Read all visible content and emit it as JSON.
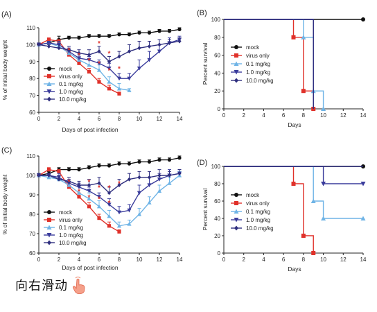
{
  "footer": {
    "text": "向右滑动",
    "icon": "pointing-hand-icon"
  },
  "colors": {
    "mock": "#111111",
    "virus": "#e0312a",
    "d01": "#6fb4e6",
    "d1": "#3a3c9c",
    "d10": "#2f2f7f",
    "star": "#e0312a"
  },
  "chart_data": [
    {
      "panel": "(A)",
      "type": "line",
      "xlabel": "Days of post infection",
      "ylabel": "% of initial body weight",
      "xlim": [
        0,
        14
      ],
      "ylim": [
        60,
        110
      ],
      "xticks": [
        0,
        2,
        4,
        6,
        8,
        10,
        12,
        14
      ],
      "yticks": [
        60,
        70,
        80,
        90,
        100,
        110
      ],
      "legend": "left-middle",
      "series": [
        {
          "name": "mock",
          "key": "mock",
          "marker": "circle",
          "x": [
            0,
            1,
            2,
            3,
            4,
            5,
            6,
            7,
            8,
            9,
            10,
            11,
            12,
            13,
            14
          ],
          "y": [
            100,
            101,
            103,
            104,
            104,
            105,
            105,
            105,
            106,
            106,
            107,
            107,
            108,
            108,
            109
          ],
          "err": [
            1,
            1,
            2,
            1,
            1,
            1,
            1,
            1,
            1,
            1,
            1,
            1,
            1,
            1,
            1
          ]
        },
        {
          "name": "virus only",
          "key": "virus",
          "marker": "square",
          "x": [
            0,
            1,
            2,
            3,
            4,
            5,
            6,
            7,
            8
          ],
          "y": [
            100,
            103,
            102,
            94,
            89,
            84,
            78,
            74,
            71
          ],
          "err": [
            1,
            1,
            1,
            2,
            2,
            2,
            2,
            2,
            1
          ]
        },
        {
          "name": "0.1 mg/kg",
          "key": "d01",
          "marker": "triangle-up",
          "x": [
            0,
            1,
            2,
            3,
            4,
            5,
            6,
            7,
            8,
            9
          ],
          "y": [
            100,
            101,
            99,
            95,
            91,
            88,
            85,
            78,
            74,
            73
          ],
          "err": [
            1,
            1,
            2,
            2,
            3,
            3,
            3,
            3,
            3,
            1
          ]
        },
        {
          "name": "1.0 mg/kg",
          "key": "d1",
          "marker": "triangle-down",
          "x": [
            0,
            1,
            2,
            3,
            4,
            5,
            6,
            7,
            8,
            9,
            10,
            11,
            12,
            13,
            14
          ],
          "y": [
            100,
            101,
            100,
            96,
            92,
            91,
            89,
            86,
            80,
            80,
            86,
            91,
            96,
            101,
            103
          ],
          "err": [
            1,
            1,
            2,
            2,
            2,
            2,
            2,
            3,
            3,
            3,
            5,
            5,
            4,
            3,
            2
          ]
        },
        {
          "name": "10.0 mg/kg",
          "key": "d10",
          "marker": "diamond",
          "x": [
            0,
            1,
            2,
            3,
            4,
            5,
            6,
            7,
            8,
            9,
            10,
            11,
            12,
            13,
            14
          ],
          "y": [
            100,
            99,
            98,
            97,
            95,
            94,
            96,
            90,
            93,
            96,
            98,
            99,
            100,
            101,
            102
          ],
          "err": [
            1,
            1,
            2,
            2,
            2,
            3,
            3,
            3,
            3,
            4,
            4,
            3,
            3,
            2,
            2
          ]
        }
      ],
      "significance": {
        "label": "*",
        "x": [
          3,
          4,
          5,
          6,
          6,
          7,
          7,
          8
        ],
        "y": [
          97,
          94,
          91,
          101,
          89,
          95,
          85,
          86
        ]
      }
    },
    {
      "panel": "(B)",
      "type": "line",
      "xlabel": "Days",
      "ylabel": "Percent survival",
      "xlim": [
        0,
        14
      ],
      "ylim": [
        0,
        100
      ],
      "xticks": [
        0,
        2,
        4,
        6,
        8,
        10,
        12,
        14
      ],
      "yticks": [
        0,
        20,
        40,
        60,
        80,
        100
      ],
      "legend": "left-middle",
      "series": [
        {
          "name": "mock",
          "key": "mock",
          "marker": "circle",
          "steps": [
            [
              0,
              100
            ],
            [
              14,
              100
            ]
          ],
          "markers": [
            [
              14,
              100
            ]
          ]
        },
        {
          "name": "virus only",
          "key": "virus",
          "marker": "square",
          "steps": [
            [
              0,
              100
            ],
            [
              7,
              100
            ],
            [
              7,
              80
            ],
            [
              8,
              80
            ],
            [
              8,
              20
            ],
            [
              9,
              20
            ],
            [
              9,
              0
            ]
          ],
          "markers": [
            [
              7,
              80
            ],
            [
              8,
              20
            ],
            [
              9,
              0
            ]
          ]
        },
        {
          "name": "0.1 mg/kg",
          "key": "d01",
          "marker": "triangle-up",
          "steps": [
            [
              0,
              100
            ],
            [
              8,
              100
            ],
            [
              8,
              80
            ],
            [
              9,
              80
            ],
            [
              9,
              20
            ],
            [
              10,
              20
            ],
            [
              10,
              0
            ]
          ],
          "markers": [
            [
              8,
              80
            ],
            [
              9,
              20
            ],
            [
              10,
              0
            ]
          ]
        },
        {
          "name": "1.0 mg/kg",
          "key": "d1",
          "marker": "triangle-down",
          "steps": [
            [
              0,
              100
            ],
            [
              9,
              100
            ],
            [
              9,
              0
            ]
          ],
          "markers": []
        },
        {
          "name": "10.0 mg/kg",
          "key": "d10",
          "marker": "diamond",
          "steps": [
            [
              0,
              100
            ],
            [
              9,
              100
            ],
            [
              9,
              0
            ]
          ],
          "markers": []
        }
      ]
    },
    {
      "panel": "(C)",
      "type": "line",
      "xlabel": "Days of post infection",
      "ylabel": "% of initial body weight",
      "xlim": [
        0,
        14
      ],
      "ylim": [
        60,
        110
      ],
      "xticks": [
        0,
        2,
        4,
        6,
        8,
        10,
        12,
        14
      ],
      "yticks": [
        60,
        70,
        80,
        90,
        100,
        110
      ],
      "legend": "left-middle",
      "series": [
        {
          "name": "mock",
          "key": "mock",
          "marker": "circle",
          "x": [
            0,
            1,
            2,
            3,
            4,
            5,
            6,
            7,
            8,
            9,
            10,
            11,
            12,
            13,
            14
          ],
          "y": [
            100,
            101,
            103,
            103,
            103,
            104,
            105,
            105,
            106,
            106,
            107,
            107,
            108,
            108,
            109
          ],
          "err": [
            1,
            1,
            1,
            1,
            1,
            1,
            1,
            1,
            1,
            1,
            1,
            1,
            1,
            1,
            1
          ]
        },
        {
          "name": "virus only",
          "key": "virus",
          "marker": "square",
          "x": [
            0,
            1,
            2,
            3,
            4,
            5,
            6,
            7,
            8
          ],
          "y": [
            100,
            103,
            102,
            94,
            89,
            84,
            78,
            74,
            71
          ],
          "err": [
            1,
            1,
            1,
            2,
            2,
            2,
            2,
            2,
            1
          ]
        },
        {
          "name": "0.1 mg/kg",
          "key": "d01",
          "marker": "triangle-up",
          "x": [
            0,
            1,
            2,
            3,
            4,
            5,
            6,
            7,
            8,
            9,
            10,
            11,
            12,
            13,
            14
          ],
          "y": [
            100,
            99,
            98,
            95,
            91,
            88,
            84,
            79,
            74,
            75,
            80,
            86,
            92,
            96,
            100
          ],
          "err": [
            1,
            1,
            2,
            2,
            3,
            3,
            3,
            3,
            2,
            2,
            3,
            3,
            3,
            3,
            2
          ]
        },
        {
          "name": "1.0 mg/kg",
          "key": "d1",
          "marker": "triangle-down",
          "x": [
            0,
            1,
            2,
            3,
            4,
            5,
            6,
            7,
            8,
            9,
            10,
            11,
            12,
            13,
            14
          ],
          "y": [
            100,
            100,
            99,
            96,
            94,
            92,
            89,
            85,
            81,
            82,
            91,
            95,
            98,
            100,
            101
          ],
          "err": [
            1,
            1,
            2,
            2,
            2,
            2,
            2,
            3,
            3,
            3,
            4,
            4,
            3,
            3,
            2
          ]
        },
        {
          "name": "10.0 mg/kg",
          "key": "d10",
          "marker": "diamond",
          "x": [
            0,
            1,
            2,
            3,
            4,
            5,
            6,
            7,
            8,
            9,
            10,
            11,
            12,
            13,
            14
          ],
          "y": [
            100,
            100,
            98,
            97,
            95,
            95,
            96,
            91,
            95,
            98,
            99,
            99,
            100,
            100,
            101
          ],
          "err": [
            1,
            1,
            2,
            2,
            2,
            3,
            3,
            3,
            3,
            3,
            3,
            3,
            3,
            2,
            2
          ]
        }
      ],
      "significance": {
        "label": "*",
        "x": [
          3,
          4,
          5,
          5,
          6,
          6,
          7,
          7,
          8
        ],
        "y": [
          97,
          92,
          89,
          97,
          88,
          94,
          86,
          94,
          96
        ]
      }
    },
    {
      "panel": "(D)",
      "type": "line",
      "xlabel": "Days",
      "ylabel": "Percent survival",
      "xlim": [
        0,
        14
      ],
      "ylim": [
        0,
        100
      ],
      "xticks": [
        0,
        2,
        4,
        6,
        8,
        10,
        12,
        14
      ],
      "yticks": [
        0,
        20,
        40,
        60,
        80,
        100
      ],
      "legend": "left-middle",
      "series": [
        {
          "name": "mock",
          "key": "mock",
          "marker": "circle",
          "steps": [
            [
              0,
              100
            ],
            [
              14,
              100
            ]
          ],
          "markers": [
            [
              14,
              100
            ]
          ]
        },
        {
          "name": "virus only",
          "key": "virus",
          "marker": "square",
          "steps": [
            [
              0,
              100
            ],
            [
              7,
              100
            ],
            [
              7,
              80
            ],
            [
              8,
              80
            ],
            [
              8,
              20
            ],
            [
              9,
              20
            ],
            [
              9,
              0
            ]
          ],
          "markers": [
            [
              7,
              80
            ],
            [
              8,
              20
            ],
            [
              9,
              0
            ]
          ]
        },
        {
          "name": "0.1 mg/kg",
          "key": "d01",
          "marker": "triangle-up",
          "steps": [
            [
              0,
              100
            ],
            [
              9,
              100
            ],
            [
              9,
              60
            ],
            [
              10,
              60
            ],
            [
              10,
              40
            ],
            [
              14,
              40
            ]
          ],
          "markers": [
            [
              9,
              60
            ],
            [
              10,
              40
            ],
            [
              14,
              40
            ]
          ]
        },
        {
          "name": "1.0 mg/kg",
          "key": "d1",
          "marker": "triangle-down",
          "steps": [
            [
              0,
              100
            ],
            [
              10,
              100
            ],
            [
              10,
              80
            ],
            [
              14,
              80
            ]
          ],
          "markers": [
            [
              10,
              80
            ],
            [
              14,
              80
            ]
          ]
        },
        {
          "name": "10.0 mg/kg",
          "key": "d10",
          "marker": "diamond",
          "steps": [
            [
              0,
              100
            ],
            [
              14,
              100
            ]
          ],
          "markers": []
        }
      ]
    }
  ]
}
